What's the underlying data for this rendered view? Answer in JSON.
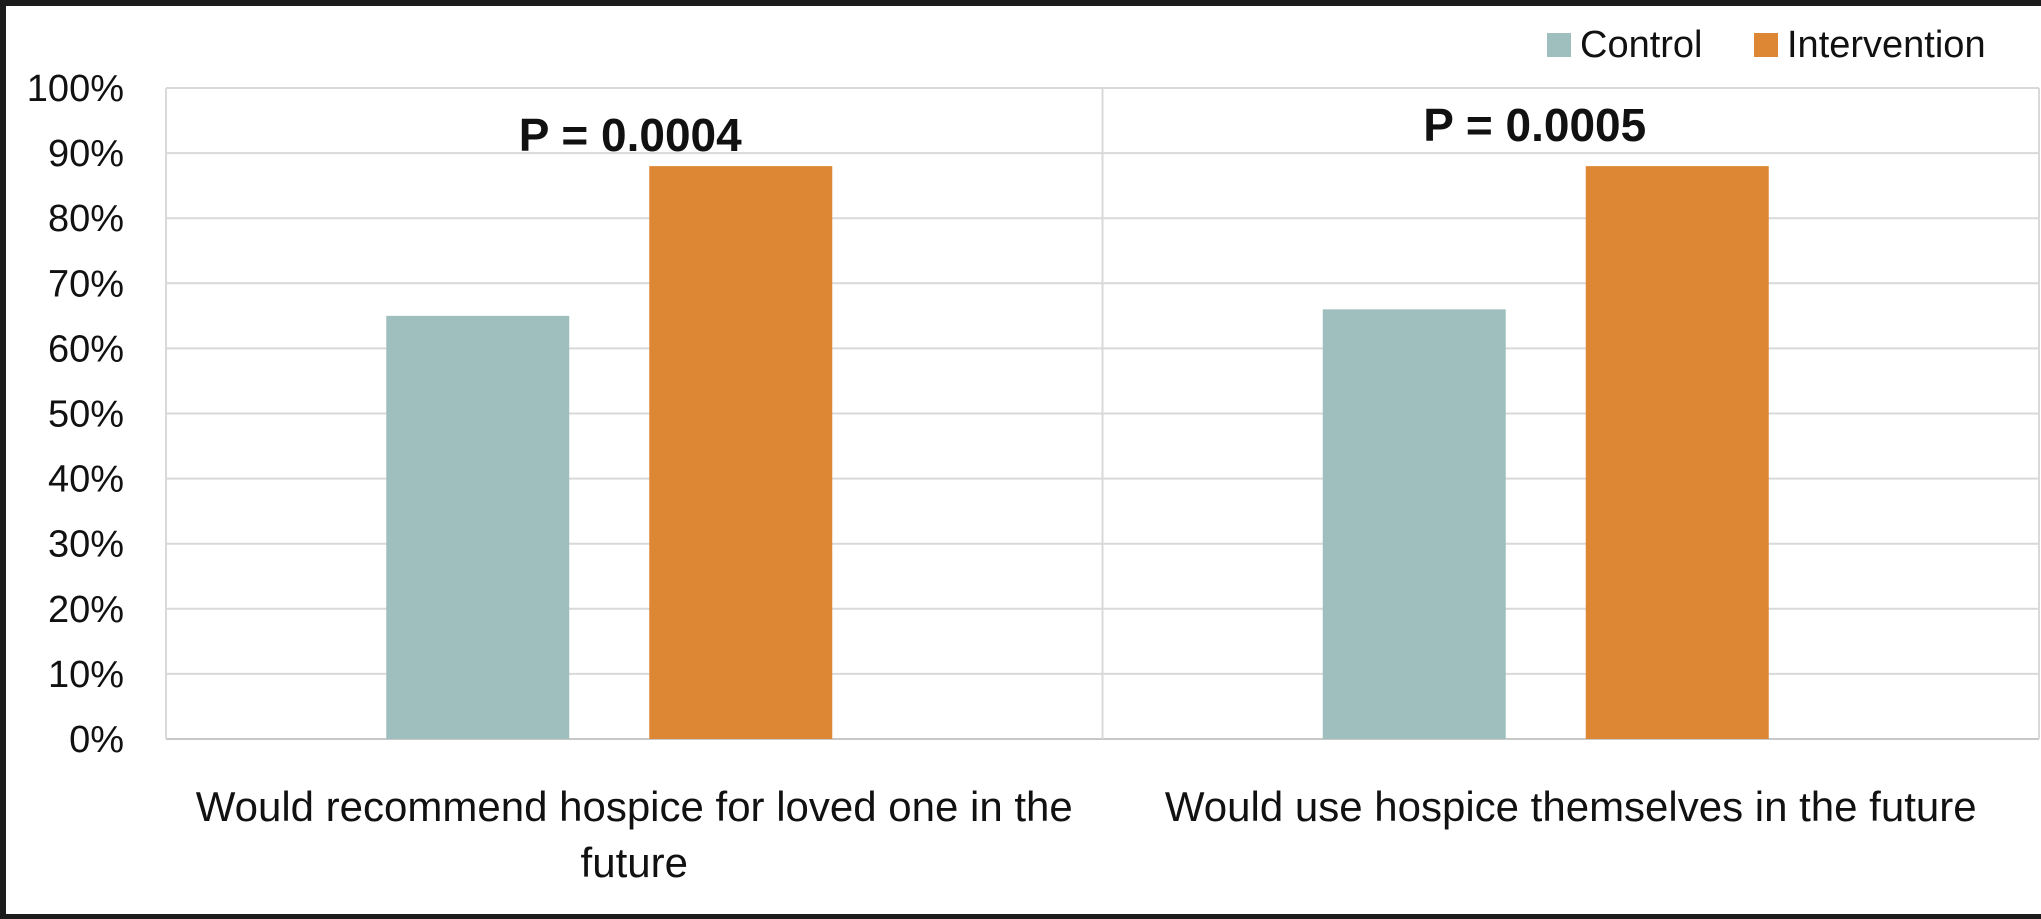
{
  "chart_data": {
    "type": "bar",
    "categories": [
      [
        "Would recommend hospice for loved one in the",
        "future"
      ],
      [
        "Would use hospice themselves in the future"
      ]
    ],
    "series": [
      {
        "name": "Control",
        "color": "#9fbfbf",
        "values": [
          65,
          66
        ]
      },
      {
        "name": "Intervention",
        "color": "#dd8633",
        "values": [
          88,
          88
        ]
      }
    ],
    "annotations": [
      "P = 0.0004",
      "P = 0.0005"
    ],
    "y_ticks": [
      "0%",
      "10%",
      "20%",
      "30%",
      "40%",
      "50%",
      "60%",
      "70%",
      "80%",
      "90%",
      "100%"
    ],
    "ylim": [
      0,
      100
    ],
    "y_format": "percent",
    "grid": true,
    "legend_position": "top-right",
    "title": "",
    "xlabel": "",
    "ylabel": ""
  }
}
